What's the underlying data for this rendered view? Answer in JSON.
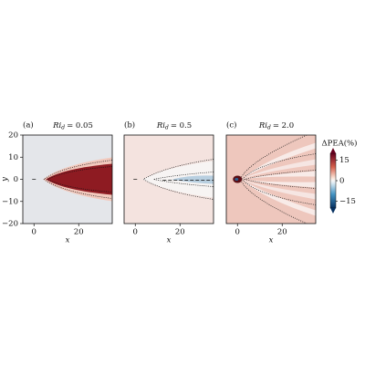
{
  "chart_data": {
    "type": "heatmap",
    "panels": [
      {
        "label": "(a)",
        "symbol": "Ri",
        "subscript": "d",
        "value": "= 0.05"
      },
      {
        "label": "(b)",
        "symbol": "Ri",
        "subscript": "d",
        "value": "= 0.5"
      },
      {
        "label": "(c)",
        "symbol": "Ri",
        "subscript": "d",
        "value": "= 2.0"
      }
    ],
    "x_label": "x",
    "y_label": "y",
    "xlim": [
      -5,
      35
    ],
    "xticks": [
      0,
      20
    ],
    "ylim": [
      -20,
      20
    ],
    "yticks": [
      {
        "value": -20,
        "label": "−20"
      },
      {
        "value": -10,
        "label": "−10"
      },
      0,
      10,
      20
    ],
    "colorbar": {
      "label": "ΔPEA(%)",
      "clim": [
        -20,
        20
      ],
      "ticks": [
        15,
        0,
        {
          "value": -15,
          "label": "−15"
        }
      ]
    }
  }
}
